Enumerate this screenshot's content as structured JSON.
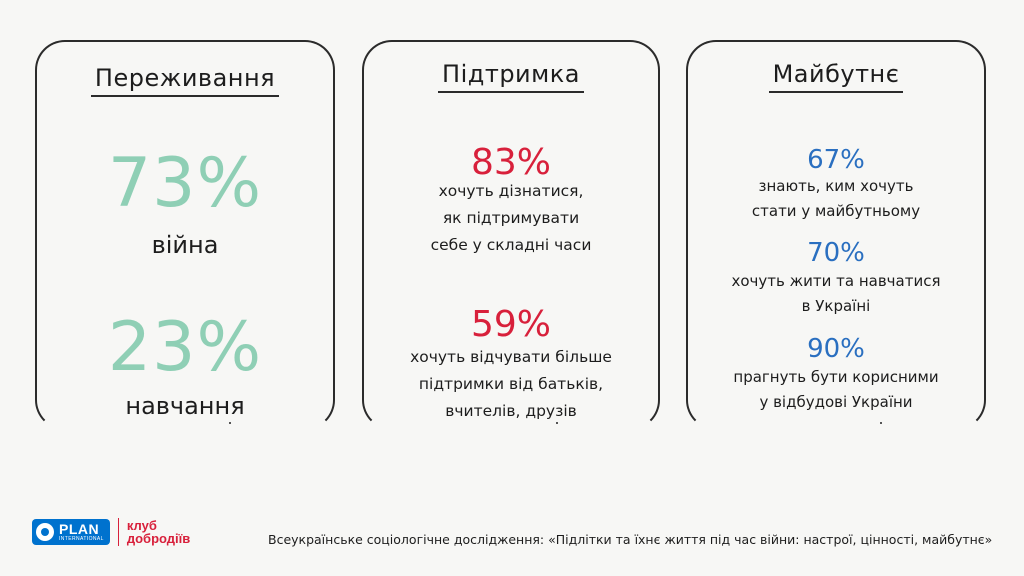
{
  "cards": [
    {
      "title": "Переживання",
      "stats": [
        {
          "value": "73%",
          "label": "війна"
        },
        {
          "value": "23%",
          "label": "навчання"
        }
      ]
    },
    {
      "title": "Підтримка",
      "stats": [
        {
          "value": "83%",
          "label": "хочуть дізнатися,\nяк підтримувати\nсебе у складні часи"
        },
        {
          "value": "59%",
          "label": "хочуть відчувати більше\nпідтримки від батьків,\nвчителів, друзів"
        }
      ]
    },
    {
      "title": "Майбутнє",
      "stats": [
        {
          "value": "67%",
          "label": "знають, ким хочуть\nстати у майбутньому"
        },
        {
          "value": "70%",
          "label": "хочуть жити та навчатися\nв Україні"
        },
        {
          "value": "90%",
          "label": "прагнуть бути корисними\nу відбудові України"
        }
      ]
    }
  ],
  "colors": {
    "card1_accent": "#8fcfb5",
    "card2_accent": "#d8203b",
    "card3_accent": "#2a6fc0"
  },
  "footer": {
    "plan_logo_main": "PLAN",
    "plan_logo_sub": "INTERNATIONAL",
    "club_logo_line1": "клуб",
    "club_logo_line2": "добродіїв",
    "source": "Всеукраїнське соціологічне дослідження: «Підлітки та їхнє життя під час війни: настрої, цінності, майбутнє»"
  }
}
